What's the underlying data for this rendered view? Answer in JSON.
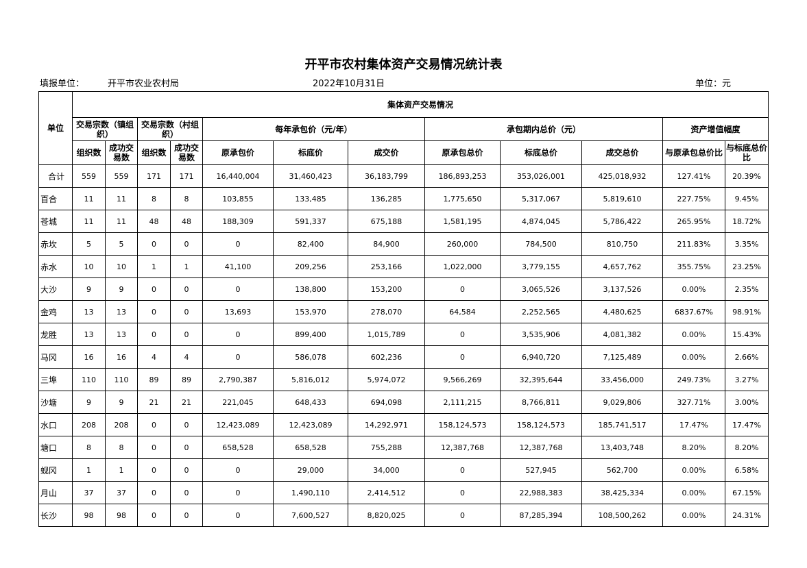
{
  "title": "开平市农村集体资产交易情况统计表",
  "info": {
    "reporter_label": "填报单位：",
    "reporter": "开平市农业农村局",
    "date": "2022年10月31日",
    "unit": "单位：元"
  },
  "headers": {
    "unit": "单位",
    "group": "集体资产交易情况",
    "town_count": "交易宗数（镇组织）",
    "village_count": "交易宗数（村组织）",
    "annual_price": "每年承包价（元/年）",
    "total_price": "承包期内总价（元）",
    "appreciation": "资产增值幅度",
    "sub": [
      "组织数",
      "成功交易数",
      "组织数",
      "成功交易数",
      "原承包价",
      "标底价",
      "成交价",
      "原承包总价",
      "标底总价",
      "成交总价",
      "与原承包总价比",
      "与标底总价比"
    ]
  },
  "rows": [
    [
      "合计",
      "559",
      "559",
      "171",
      "171",
      "16,440,004",
      "31,460,423",
      "36,183,799",
      "186,893,253",
      "353,026,001",
      "425,018,932",
      "127.41%",
      "20.39%"
    ],
    [
      "百合",
      "11",
      "11",
      "8",
      "8",
      "103,855",
      "133,485",
      "136,285",
      "1,775,650",
      "5,317,067",
      "5,819,610",
      "227.75%",
      "9.45%"
    ],
    [
      "苍城",
      "11",
      "11",
      "48",
      "48",
      "188,309",
      "591,337",
      "675,188",
      "1,581,195",
      "4,874,045",
      "5,786,422",
      "265.95%",
      "18.72%"
    ],
    [
      "赤坎",
      "5",
      "5",
      "0",
      "0",
      "0",
      "82,400",
      "84,900",
      "260,000",
      "784,500",
      "810,750",
      "211.83%",
      "3.35%"
    ],
    [
      "赤水",
      "10",
      "10",
      "1",
      "1",
      "41,100",
      "209,256",
      "253,166",
      "1,022,000",
      "3,779,155",
      "4,657,762",
      "355.75%",
      "23.25%"
    ],
    [
      "大沙",
      "9",
      "9",
      "0",
      "0",
      "0",
      "138,800",
      "153,200",
      "0",
      "3,065,526",
      "3,137,526",
      "0.00%",
      "2.35%"
    ],
    [
      "金鸡",
      "13",
      "13",
      "0",
      "0",
      "13,693",
      "153,970",
      "278,070",
      "64,584",
      "2,252,565",
      "4,480,625",
      "6837.67%",
      "98.91%"
    ],
    [
      "龙胜",
      "13",
      "13",
      "0",
      "0",
      "0",
      "899,400",
      "1,015,789",
      "0",
      "3,535,906",
      "4,081,382",
      "0.00%",
      "15.43%"
    ],
    [
      "马冈",
      "16",
      "16",
      "4",
      "4",
      "0",
      "586,078",
      "602,236",
      "0",
      "6,940,720",
      "7,125,489",
      "0.00%",
      "2.66%"
    ],
    [
      "三埠",
      "110",
      "110",
      "89",
      "89",
      "2,790,387",
      "5,816,012",
      "5,974,072",
      "9,566,269",
      "32,395,644",
      "33,456,000",
      "249.73%",
      "3.27%"
    ],
    [
      "沙塘",
      "9",
      "9",
      "21",
      "21",
      "221,045",
      "648,433",
      "694,098",
      "2,111,215",
      "8,766,811",
      "9,029,806",
      "327.71%",
      "3.00%"
    ],
    [
      "水口",
      "208",
      "208",
      "0",
      "0",
      "12,423,089",
      "12,423,089",
      "14,292,971",
      "158,124,573",
      "158,124,573",
      "185,741,517",
      "17.47%",
      "17.47%"
    ],
    [
      "塘口",
      "8",
      "8",
      "0",
      "0",
      "658,528",
      "658,528",
      "755,288",
      "12,387,768",
      "12,387,768",
      "13,403,748",
      "8.20%",
      "8.20%"
    ],
    [
      "蚬冈",
      "1",
      "1",
      "0",
      "0",
      "0",
      "29,000",
      "34,000",
      "0",
      "527,945",
      "562,700",
      "0.00%",
      "6.58%"
    ],
    [
      "月山",
      "37",
      "37",
      "0",
      "0",
      "0",
      "1,490,110",
      "2,414,512",
      "0",
      "22,988,383",
      "38,425,334",
      "0.00%",
      "67.15%"
    ],
    [
      "长沙",
      "98",
      "98",
      "0",
      "0",
      "0",
      "7,600,527",
      "8,820,025",
      "0",
      "87,285,394",
      "108,500,262",
      "0.00%",
      "24.31%"
    ]
  ]
}
